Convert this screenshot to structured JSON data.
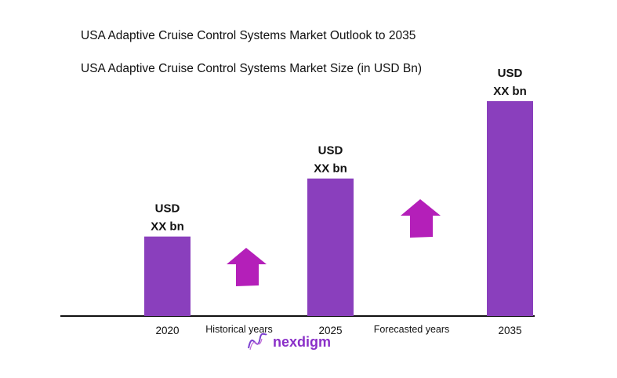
{
  "chart_data": {
    "type": "bar",
    "title": "USA Adaptive Cruise Control Systems Market Outlook to 2035",
    "subtitle": "USA Adaptive Cruise Control Systems Market Size (in USD Bn)",
    "categories": [
      "2020",
      "2025",
      "2035"
    ],
    "values": [
      37,
      64,
      100
    ],
    "data_labels": [
      [
        "USD",
        "XX bn"
      ],
      [
        "USD",
        "XX bn"
      ],
      [
        "USD",
        "XX bn"
      ]
    ],
    "ylim": [
      0,
      100
    ],
    "grid": false,
    "annotations": [
      "Historical years",
      "Forecasted years"
    ],
    "colors": {
      "bar": "#8a3fbd",
      "arrow": "#b41fb9",
      "axis": "#111111"
    }
  },
  "logo": {
    "text": "nexdigm"
  }
}
